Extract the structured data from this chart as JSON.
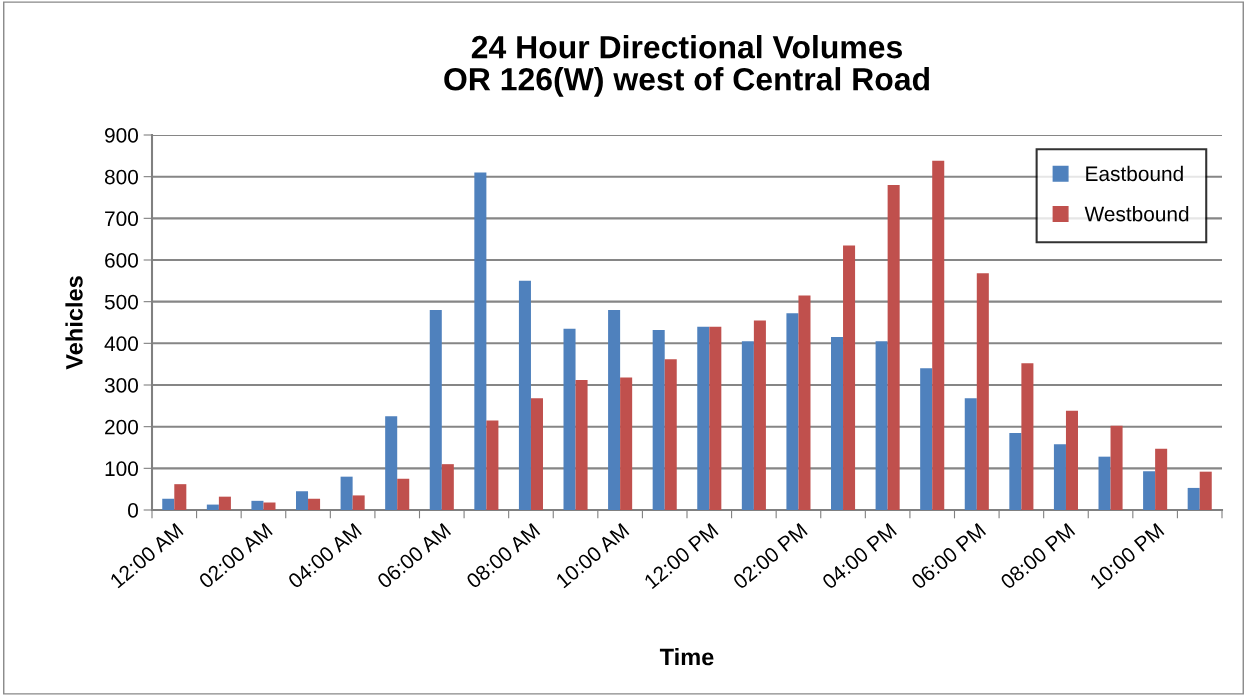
{
  "chart_data": {
    "type": "bar",
    "title": "24 Hour Directional Volumes\nOR 126(W) west of Central Road",
    "xlabel": "Time",
    "ylabel": "Vehicles",
    "categories": [
      "12:00 AM",
      null,
      "02:00 AM",
      null,
      "04:00 AM",
      null,
      "06:00 AM",
      null,
      "08:00 AM",
      null,
      "10:00 AM",
      null,
      "12:00 PM",
      null,
      "02:00 PM",
      null,
      "04:00 PM",
      null,
      "06:00 PM",
      null,
      "08:00 PM",
      null,
      "10:00 PM",
      null
    ],
    "series": [
      {
        "name": "Eastbound",
        "color": "#4f81bd",
        "values": [
          27,
          13,
          22,
          45,
          80,
          225,
          480,
          810,
          550,
          435,
          480,
          432,
          440,
          405,
          472,
          415,
          405,
          340,
          268,
          185,
          158,
          128,
          93,
          53
        ]
      },
      {
        "name": "Westbound",
        "color": "#c0504d",
        "values": [
          62,
          32,
          18,
          27,
          35,
          75,
          110,
          215,
          268,
          312,
          318,
          362,
          440,
          455,
          515,
          635,
          780,
          838,
          568,
          352,
          238,
          202,
          147,
          92
        ]
      }
    ],
    "ylim": [
      0,
      900
    ],
    "yticks": [
      0,
      100,
      200,
      300,
      400,
      500,
      600,
      700,
      800,
      900
    ],
    "grid": "y",
    "legend": "top right"
  }
}
